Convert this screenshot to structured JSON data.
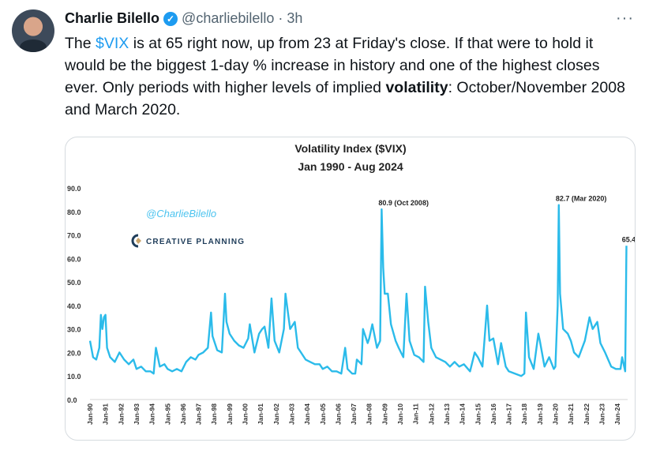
{
  "tweet": {
    "author_name": "Charlie Bilello",
    "verified_icon": "verified-badge-icon",
    "handle": "@charliebilello",
    "separator": "·",
    "time": "3h",
    "more_icon": "more-horizontal-icon",
    "text_before": "The ",
    "cashtag": "$VIX",
    "text_middle": " is at 65 right now, up from 23 at Friday's close. If that were to hold it would be the biggest 1-day % increase in history and one of the highest closes ever.  Only periods with higher levels of implied ",
    "text_bold": "volatility",
    "text_after": ": October/November 2008 and March 2020.",
    "accent_color": "#1d9bf0"
  },
  "chart_data": {
    "type": "line",
    "title": "Volatility Index ($VIX)",
    "subtitle": "Jan 1990 - Aug 2024",
    "watermark": "@CharlieBilello",
    "logo_text": "CREATIVE PLANNING",
    "xlabel": "",
    "ylabel": "",
    "ylim": [
      0,
      90
    ],
    "xlim": [
      1990,
      2024.6
    ],
    "grid": false,
    "line_color": "#2bbbea",
    "y_ticks": [
      "0.0",
      "10.0",
      "20.0",
      "30.0",
      "40.0",
      "50.0",
      "60.0",
      "70.0",
      "80.0",
      "90.0"
    ],
    "x_ticks": [
      "Jan-90",
      "Jan-91",
      "Jan-92",
      "Jan-93",
      "Jan-94",
      "Jan-95",
      "Jan-96",
      "Jan-97",
      "Jan-98",
      "Jan-99",
      "Jan-00",
      "Jan-01",
      "Jan-02",
      "Jan-03",
      "Jan-04",
      "Jan-05",
      "Jan-06",
      "Jan-07",
      "Jan-08",
      "Jan-09",
      "Jan-10",
      "Jan-11",
      "Jan-12",
      "Jan-13",
      "Jan-14",
      "Jan-15",
      "Jan-16",
      "Jan-17",
      "Jan-18",
      "Jan-19",
      "Jan-20",
      "Jan-21",
      "Jan-22",
      "Jan-23",
      "Jan-24"
    ],
    "annotations": [
      {
        "text": "80.9 (Oct 2008)",
        "x": 2008.8,
        "y": 80.9
      },
      {
        "text": "82.7 (Mar 2020)",
        "x": 2020.22,
        "y": 82.7
      },
      {
        "text": "65.4",
        "x": 2024.58,
        "y": 65.4
      }
    ],
    "series": [
      {
        "name": "VIX",
        "points": [
          [
            1990.0,
            25
          ],
          [
            1990.2,
            18
          ],
          [
            1990.4,
            17
          ],
          [
            1990.6,
            22
          ],
          [
            1990.7,
            36
          ],
          [
            1990.8,
            30
          ],
          [
            1990.9,
            35
          ],
          [
            1991.0,
            36
          ],
          [
            1991.1,
            22
          ],
          [
            1991.3,
            18
          ],
          [
            1991.6,
            16
          ],
          [
            1991.9,
            20
          ],
          [
            1992.2,
            17
          ],
          [
            1992.5,
            15
          ],
          [
            1992.8,
            17
          ],
          [
            1993.0,
            13
          ],
          [
            1993.3,
            14
          ],
          [
            1993.6,
            12
          ],
          [
            1993.9,
            12
          ],
          [
            1994.1,
            11
          ],
          [
            1994.25,
            22
          ],
          [
            1994.5,
            14
          ],
          [
            1994.8,
            15
          ],
          [
            1995.0,
            13
          ],
          [
            1995.3,
            12
          ],
          [
            1995.6,
            13
          ],
          [
            1995.9,
            12
          ],
          [
            1996.2,
            16
          ],
          [
            1996.5,
            18
          ],
          [
            1996.8,
            17
          ],
          [
            1997.0,
            19
          ],
          [
            1997.3,
            20
          ],
          [
            1997.6,
            22
          ],
          [
            1997.8,
            37
          ],
          [
            1997.9,
            27
          ],
          [
            1998.2,
            21
          ],
          [
            1998.5,
            20
          ],
          [
            1998.7,
            45
          ],
          [
            1998.8,
            33
          ],
          [
            1999.0,
            28
          ],
          [
            1999.3,
            25
          ],
          [
            1999.6,
            23
          ],
          [
            1999.9,
            22
          ],
          [
            2000.2,
            26
          ],
          [
            2000.3,
            32
          ],
          [
            2000.6,
            20
          ],
          [
            2000.9,
            28
          ],
          [
            2001.1,
            30
          ],
          [
            2001.25,
            31
          ],
          [
            2001.5,
            22
          ],
          [
            2001.7,
            43
          ],
          [
            2001.9,
            25
          ],
          [
            2002.2,
            20
          ],
          [
            2002.5,
            30
          ],
          [
            2002.6,
            45
          ],
          [
            2002.8,
            35
          ],
          [
            2002.9,
            30
          ],
          [
            2003.2,
            33
          ],
          [
            2003.4,
            22
          ],
          [
            2003.6,
            20
          ],
          [
            2003.9,
            17
          ],
          [
            2004.2,
            16
          ],
          [
            2004.5,
            15
          ],
          [
            2004.8,
            15
          ],
          [
            2005.0,
            13
          ],
          [
            2005.3,
            14
          ],
          [
            2005.6,
            12
          ],
          [
            2005.9,
            12
          ],
          [
            2006.2,
            11
          ],
          [
            2006.45,
            22
          ],
          [
            2006.6,
            13
          ],
          [
            2006.9,
            11
          ],
          [
            2007.1,
            11
          ],
          [
            2007.2,
            17
          ],
          [
            2007.5,
            15
          ],
          [
            2007.6,
            30
          ],
          [
            2007.9,
            24
          ],
          [
            2008.0,
            26
          ],
          [
            2008.2,
            32
          ],
          [
            2008.5,
            22
          ],
          [
            2008.7,
            25
          ],
          [
            2008.8,
            80.9
          ],
          [
            2008.9,
            56
          ],
          [
            2009.0,
            45
          ],
          [
            2009.2,
            45
          ],
          [
            2009.4,
            32
          ],
          [
            2009.7,
            25
          ],
          [
            2009.9,
            22
          ],
          [
            2010.2,
            18
          ],
          [
            2010.4,
            45
          ],
          [
            2010.6,
            25
          ],
          [
            2010.9,
            19
          ],
          [
            2011.2,
            18
          ],
          [
            2011.5,
            16
          ],
          [
            2011.6,
            48
          ],
          [
            2011.8,
            33
          ],
          [
            2012.0,
            22
          ],
          [
            2012.3,
            18
          ],
          [
            2012.6,
            17
          ],
          [
            2012.9,
            16
          ],
          [
            2013.2,
            14
          ],
          [
            2013.5,
            16
          ],
          [
            2013.8,
            14
          ],
          [
            2014.1,
            15
          ],
          [
            2014.5,
            12
          ],
          [
            2014.8,
            20
          ],
          [
            2015.0,
            18
          ],
          [
            2015.3,
            14
          ],
          [
            2015.6,
            40
          ],
          [
            2015.75,
            25
          ],
          [
            2016.0,
            26
          ],
          [
            2016.3,
            15
          ],
          [
            2016.5,
            24
          ],
          [
            2016.8,
            14
          ],
          [
            2017.0,
            12
          ],
          [
            2017.4,
            11
          ],
          [
            2017.8,
            10
          ],
          [
            2018.0,
            11
          ],
          [
            2018.1,
            37
          ],
          [
            2018.3,
            18
          ],
          [
            2018.6,
            13
          ],
          [
            2018.9,
            28
          ],
          [
            2019.0,
            25
          ],
          [
            2019.3,
            14
          ],
          [
            2019.6,
            18
          ],
          [
            2019.9,
            13
          ],
          [
            2020.0,
            14
          ],
          [
            2020.15,
            40
          ],
          [
            2020.22,
            82.7
          ],
          [
            2020.3,
            45
          ],
          [
            2020.5,
            30
          ],
          [
            2020.8,
            28
          ],
          [
            2021.0,
            25
          ],
          [
            2021.2,
            20
          ],
          [
            2021.5,
            18
          ],
          [
            2021.9,
            25
          ],
          [
            2022.2,
            35
          ],
          [
            2022.4,
            30
          ],
          [
            2022.7,
            33
          ],
          [
            2022.9,
            24
          ],
          [
            2023.2,
            20
          ],
          [
            2023.4,
            17
          ],
          [
            2023.6,
            14
          ],
          [
            2023.9,
            13
          ],
          [
            2024.2,
            13
          ],
          [
            2024.3,
            18
          ],
          [
            2024.5,
            12
          ],
          [
            2024.58,
            65.4
          ]
        ]
      }
    ]
  }
}
